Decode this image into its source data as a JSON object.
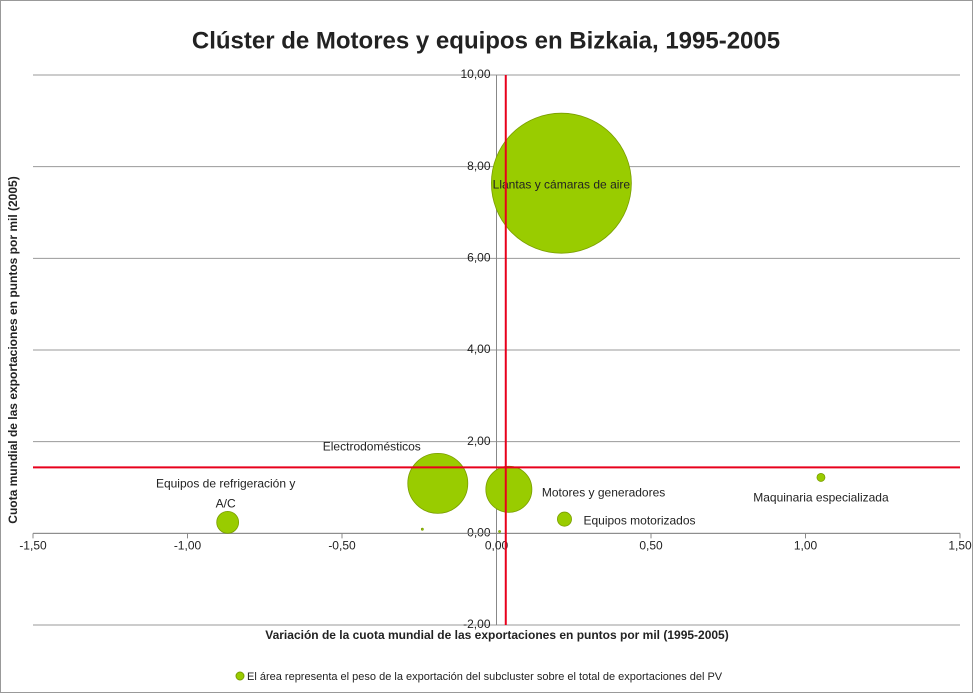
{
  "chart_data": {
    "type": "bubble",
    "title": "Clúster de Motores y equipos en Bizkaia, 1995-2005",
    "x_label": "Variación de la cuota mundial de las exportaciones en puntos por mil (1995-2005)",
    "y_label": "Cuota mundial de las exportaciones en puntos por mil (2005)",
    "series": [
      {
        "name": "El área representa el peso de la exportación del subcluster sobre el total de exportaciones del PV",
        "color": "#99cc00",
        "x": [
          0.21,
          -0.19,
          0.04,
          -0.87,
          0.22,
          1.05,
          -0.24,
          0.01
        ],
        "values": [
          7.64,
          1.09,
          0.96,
          0.24,
          0.31,
          1.22,
          0.09,
          0.04
        ],
        "sizes": [
          49,
          9,
          5.3,
          1.2,
          0.5,
          0.16,
          0.01,
          0.01
        ],
        "labels": [
          [
            "Llantas y cámaras de aire"
          ],
          [
            "Electrodomésticos"
          ],
          [
            "Motores y generadores"
          ],
          [
            "Equipos de refrigeración y",
            "A/C"
          ],
          [
            "Equipos motorizados"
          ],
          [
            "Maquinaria especializada"
          ],
          null,
          null
        ]
      }
    ],
    "reference_lines": {
      "x": 0.03,
      "y": 1.44,
      "color": "#e8001c"
    },
    "xlim": [
      -1.5,
      1.5
    ],
    "xticks": [
      {
        "value": -1.5,
        "label": "-1,50"
      },
      {
        "value": -1,
        "label": "-1,00"
      },
      {
        "value": -0.5,
        "label": "-0,50"
      },
      {
        "value": 0,
        "label": "0,00"
      },
      {
        "value": 0.5,
        "label": "0,50"
      },
      {
        "value": 1,
        "label": "1,00"
      },
      {
        "value": 1.5,
        "label": "1,50"
      }
    ],
    "ylim": [
      -2,
      10
    ],
    "yticks": [
      {
        "value": -2,
        "label": "-2,00"
      },
      {
        "value": 0,
        "label": "0,00"
      },
      {
        "value": 2,
        "label": "2,00"
      },
      {
        "value": 4,
        "label": "4,00"
      },
      {
        "value": 6,
        "label": "6,00"
      },
      {
        "value": 8,
        "label": "8,00"
      },
      {
        "value": 10,
        "label": "10,00"
      }
    ],
    "grid": true,
    "legend": "bottom"
  }
}
